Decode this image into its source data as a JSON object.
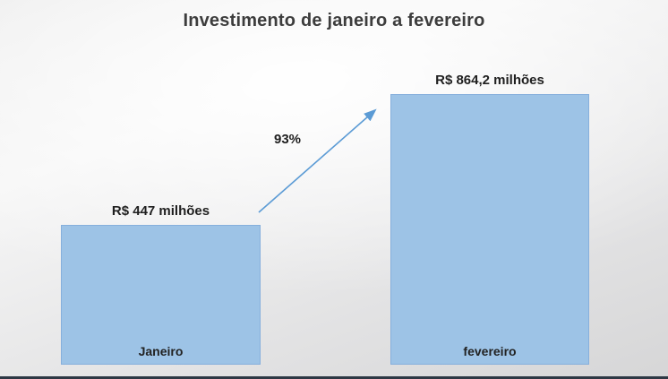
{
  "slide": {
    "title": "Investimento de janeiro a fevereiro"
  },
  "chart_data": {
    "type": "bar",
    "title": "Investimento de janeiro a fevereiro",
    "categories": [
      "Janeiro",
      "fevereiro"
    ],
    "values": [
      447,
      864.2
    ],
    "value_labels": [
      "R$ 447 milhões",
      "R$ 864,2 milhões"
    ],
    "unit": "R$ milhões",
    "ylim": [
      0,
      864.2
    ],
    "grid": false,
    "legend": false,
    "annotation": {
      "label": "93%",
      "type": "growth-arrow"
    },
    "colors": {
      "bar_fill": "#9DC3E6",
      "bar_border": "#86AFDC",
      "arrow": "#5B9BD5",
      "title_text": "#3D3D3D",
      "label_text": "#1F1F1F",
      "bottom_edge": "#2D3844"
    }
  }
}
